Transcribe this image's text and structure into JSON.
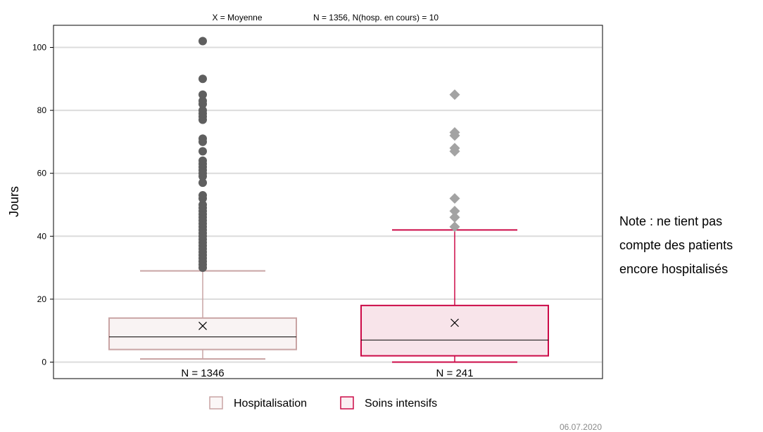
{
  "chart_data": {
    "type": "boxplot",
    "header_left": "X = Moyenne",
    "header_right": "N = 1356, N(hosp. en cours) = 10",
    "ylabel": "Jours",
    "ylim": [
      -5,
      107
    ],
    "yticks": [
      0,
      20,
      40,
      60,
      80,
      100
    ],
    "grid": true,
    "legend_position": "bottom",
    "series": [
      {
        "name": "Hospitalisation",
        "count_label": "N = 1346",
        "stroke": "#c9a4a4",
        "fill": "#f9f3f3",
        "marker": "circle",
        "marker_color": "#5f5f5f",
        "whisker_low": 1,
        "q1": 4,
        "median": 8,
        "q3": 14,
        "whisker_high": 29,
        "mean": 11.5,
        "outliers": [
          30,
          31,
          32,
          33,
          34,
          35,
          36,
          37,
          38,
          39,
          40,
          41,
          42,
          43,
          44,
          45,
          46,
          47,
          48,
          49,
          50,
          52,
          53,
          57,
          59,
          60,
          61,
          62,
          63,
          64,
          67,
          70,
          71,
          77,
          78,
          79,
          80,
          82,
          83,
          85,
          90,
          102
        ]
      },
      {
        "name": "Soins intensifs",
        "count_label": "N = 241",
        "stroke": "#cc0a47",
        "fill": "#f8e4ea",
        "marker": "diamond",
        "marker_color": "#a3a3a3",
        "whisker_low": 0,
        "q1": 2,
        "median": 7,
        "q3": 18,
        "whisker_high": 42,
        "mean": 12.5,
        "outliers": [
          43,
          46,
          48,
          52,
          67,
          68,
          72,
          73,
          85
        ]
      }
    ]
  },
  "note": "Note : ne tient pas compte des patients encore hospitalisés",
  "date": "06.07.2020"
}
